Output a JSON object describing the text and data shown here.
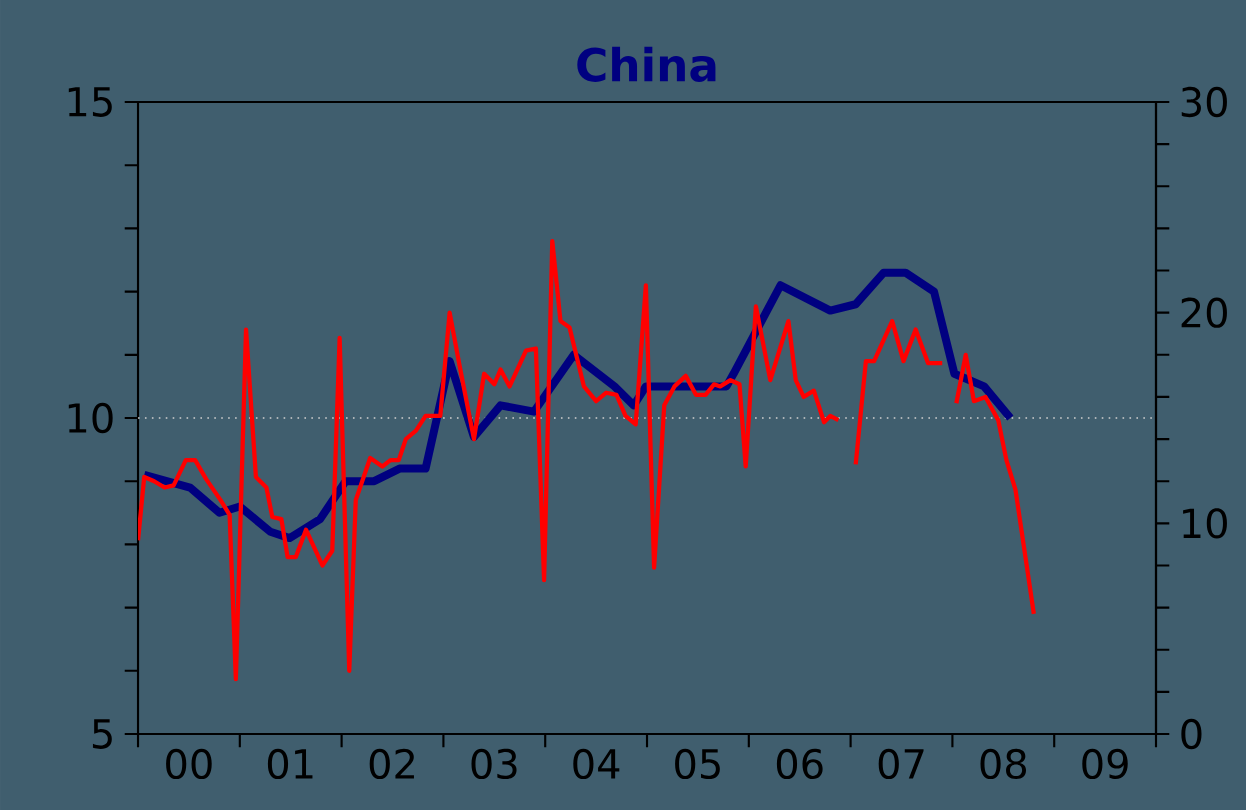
{
  "chart_data": {
    "type": "line",
    "title": "China",
    "xlim": [
      "2000-01-01",
      "2010-01-01"
    ],
    "xticks": [
      {
        "value": "2000-01-01",
        "label": null
      },
      {
        "value": "2000-07-01",
        "label": "00"
      },
      {
        "value": "2001-01-01",
        "label": null
      },
      {
        "value": "2001-07-01",
        "label": "01"
      },
      {
        "value": "2002-01-01",
        "label": null
      },
      {
        "value": "2002-07-01",
        "label": "02"
      },
      {
        "value": "2003-01-01",
        "label": null
      },
      {
        "value": "2003-07-01",
        "label": "03"
      },
      {
        "value": "2004-01-01",
        "label": null
      },
      {
        "value": "2004-07-01",
        "label": "04"
      },
      {
        "value": "2005-01-01",
        "label": null
      },
      {
        "value": "2005-07-01",
        "label": "05"
      },
      {
        "value": "2006-01-01",
        "label": null
      },
      {
        "value": "2006-07-01",
        "label": "06"
      },
      {
        "value": "2007-01-01",
        "label": null
      },
      {
        "value": "2007-07-01",
        "label": "07"
      },
      {
        "value": "2008-01-01",
        "label": null
      },
      {
        "value": "2008-07-01",
        "label": "08"
      },
      {
        "value": "2009-01-01",
        "label": null
      },
      {
        "value": "2009-07-01",
        "label": "09"
      },
      {
        "value": "2010-01-01",
        "label": null
      }
    ],
    "ylim": [
      5,
      15
    ],
    "yticks": [
      5,
      {
        "value": 6,
        "label": null
      },
      {
        "value": 7,
        "label": null
      },
      {
        "value": 8,
        "label": null
      },
      {
        "value": 9,
        "label": null
      },
      10,
      {
        "value": 11,
        "label": null
      },
      {
        "value": 12,
        "label": null
      },
      {
        "value": 13,
        "label": null
      },
      {
        "value": 14,
        "label": null
      },
      15
    ],
    "y2lim": [
      0,
      30
    ],
    "y2ticks": [
      0,
      {
        "value": 2,
        "label": null
      },
      {
        "value": 4,
        "label": null
      },
      {
        "value": 6,
        "label": null
      },
      {
        "value": 8,
        "label": null
      },
      10,
      {
        "value": 12,
        "label": null
      },
      {
        "value": 14,
        "label": null
      },
      {
        "value": 16,
        "label": null
      },
      {
        "value": 18,
        "label": null
      },
      20,
      {
        "value": 22,
        "label": null
      },
      {
        "value": 24,
        "label": null
      },
      {
        "value": 26,
        "label": null
      },
      {
        "value": 28,
        "label": null
      },
      30
    ],
    "ref_lines": [
      {
        "axis": "y",
        "value": 10,
        "color": "#d0d0d0",
        "line_style": "dotted"
      }
    ],
    "series": [
      {
        "color": "#000080",
        "axis": "y",
        "x": [
          "2000-01-23",
          "2000-07-05",
          "2000-10-19",
          "2001-01-01",
          "2001-04-19",
          "2001-06-27",
          "2001-10-15",
          "2002-01-15",
          "2002-04-26",
          "2002-07-26",
          "2002-10-28",
          "2003-01-23",
          "2003-04-19",
          "2003-07-23",
          "2003-11-21",
          "2004-04-12",
          "2004-09-06",
          "2004-11-14",
          "2004-12-27",
          "2005-10-12",
          "2005-11-07",
          "2006-04-23",
          "2006-10-19",
          "2007-01-19",
          "2007-04-28",
          "2007-07-15",
          "2007-10-26",
          "2008-01-08",
          "2008-04-23",
          "2008-07-26"
        ],
        "values": [
          9.1,
          8.9,
          8.5,
          8.6,
          8.2,
          8.1,
          8.4,
          9.0,
          9.0,
          9.2,
          9.2,
          10.9,
          9.7,
          10.2,
          10.1,
          11.0,
          10.5,
          10.2,
          10.5,
          10.5,
          10.7,
          12.1,
          11.7,
          11.8,
          12.3,
          12.3,
          12.0,
          10.7,
          10.5,
          10.0
        ]
      },
      {
        "color": "#ff0000",
        "axis": "y2",
        "x": [
          "2000-01-01",
          "2000-01-23",
          "2000-02-28",
          "2000-04-05",
          "2000-05-07",
          "2000-06-20",
          "2000-07-23",
          "2000-09-02",
          "2000-10-23",
          "2000-11-25",
          "2000-12-17",
          "2001-01-23",
          "2001-02-28",
          "2001-04-05",
          "2001-04-26",
          "2001-05-28",
          "2001-06-20",
          "2001-07-19",
          "2001-08-25",
          "2001-10-23",
          "2001-11-28",
          "2001-12-24",
          "2002-01-28",
          "2002-02-21",
          "2002-04-12",
          "2002-05-25",
          "2002-06-24",
          "2002-07-23",
          "2002-08-18",
          "2002-09-24",
          "2002-10-28",
          "2002-12-20",
          "2003-01-23",
          "2003-02-28",
          "2003-04-19",
          "2003-05-25",
          "2003-07-01",
          "2003-07-23",
          "2003-08-25",
          "2003-10-23",
          "2003-11-28",
          "2003-12-27",
          "2004-01-26",
          "2004-02-25",
          "2004-03-27",
          "2004-05-18",
          "2004-07-01",
          "2004-08-07",
          "2004-09-13",
          "2004-10-15",
          "2004-11-21",
          "2004-12-27",
          "2005-01-26",
          "2005-03-02",
          "2005-04-08",
          "2005-05-18",
          "2005-06-24",
          "2005-07-28",
          "2005-08-28",
          "2005-09-20",
          "2005-10-26",
          "2005-11-28",
          "2005-12-20",
          "2006-01-26",
          "2006-03-17",
          "2006-05-21",
          "2006-06-17",
          "2006-07-15",
          "2006-08-21",
          "2006-09-27",
          "2006-10-19",
          "2006-11-18",
          "2006-12-17",
          "2007-01-19",
          "2007-02-25",
          "2007-03-24",
          "2007-05-28",
          "2007-07-08",
          "2007-08-21",
          "2007-10-05",
          "2007-11-25",
          "2007-12-20",
          "2008-01-15",
          "2008-02-18",
          "2008-03-17",
          "2008-04-28",
          "2008-06-13",
          "2008-07-12",
          "2008-08-14",
          "2008-10-19"
        ],
        "values": [
          9.2,
          12.2,
          12.0,
          11.7,
          11.8,
          13.0,
          13.0,
          12.1,
          11.1,
          10.4,
          2.6,
          19.2,
          12.2,
          11.7,
          10.3,
          10.2,
          8.4,
          8.4,
          9.7,
          8.0,
          8.7,
          18.8,
          3.0,
          11.1,
          13.1,
          12.7,
          13.0,
          13.0,
          14.0,
          14.4,
          15.1,
          15.1,
          20.0,
          17.5,
          14.0,
          17.1,
          16.6,
          17.3,
          16.5,
          18.2,
          18.3,
          7.3,
          23.4,
          19.6,
          19.3,
          16.5,
          15.8,
          16.2,
          16.1,
          15.1,
          14.7,
          21.3,
          7.9,
          15.6,
          16.5,
          17.0,
          16.1,
          16.1,
          16.6,
          16.5,
          16.8,
          16.6,
          12.7,
          20.3,
          16.8,
          19.6,
          16.8,
          16.0,
          16.3,
          14.8,
          15.1,
          14.9,
          null,
          12.8,
          17.7,
          17.7,
          19.6,
          17.7,
          19.2,
          17.6,
          17.6,
          null,
          15.7,
          18.0,
          15.8,
          16.0,
          14.9,
          13.0,
          11.6,
          5.7
        ]
      }
    ]
  }
}
